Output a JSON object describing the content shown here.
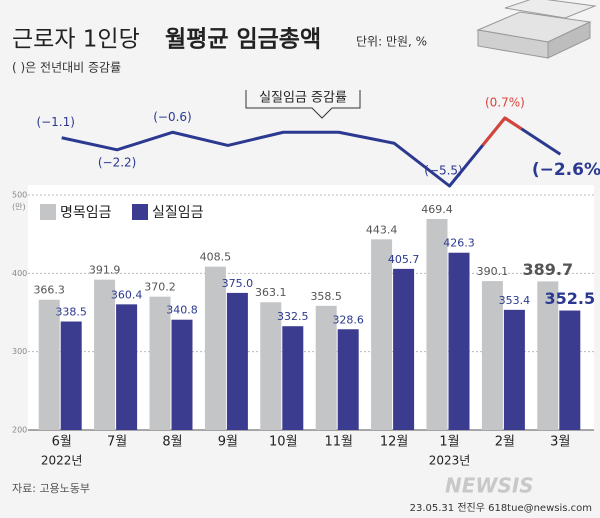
{
  "header": {
    "title_regular": "근로자 1인당",
    "title_bold": "월평균 임금총액",
    "unit": "단위: 만원, %",
    "note": "( )은 전년대비 증감률"
  },
  "chart_data": [
    {
      "type": "line",
      "label": "실질임금 증감률",
      "color": "#2b3990",
      "highlight_color": "#d9443a",
      "values": [
        -1.1,
        -2.2,
        -0.6,
        -1.8,
        -0.6,
        -0.6,
        -1.6,
        -5.5,
        0.7,
        -2.6
      ],
      "value_labels": [
        "(−1.1)",
        "(−2.2)",
        "(−0.6)",
        null,
        null,
        null,
        null,
        "(−5.5)",
        "(0.7%)",
        "(−2.6%)"
      ]
    },
    {
      "type": "bar",
      "categories": [
        "6월",
        "7월",
        "8월",
        "9월",
        "10월",
        "11월",
        "12월",
        "1월",
        "2월",
        "3월"
      ],
      "year_labels": [
        "2022년",
        null,
        null,
        null,
        null,
        null,
        null,
        "2023년",
        null,
        null
      ],
      "ylim": [
        200,
        500
      ],
      "yticks": [
        200,
        300,
        400,
        500
      ],
      "y_unit": "(만)",
      "grid": true,
      "legend": "top-left",
      "series": [
        {
          "name": "명목임금",
          "color": "#c4c5c7",
          "values": [
            366.3,
            391.9,
            370.2,
            408.5,
            363.1,
            358.5,
            443.4,
            469.4,
            390.1,
            389.7
          ],
          "value_labels": [
            "366.3",
            "391.9",
            "370.2",
            "408.5",
            "363.1",
            "358.5",
            "443.4",
            "469.4",
            "390.1",
            "389.7"
          ]
        },
        {
          "name": "실질임금",
          "color": "#3b3b8f",
          "values": [
            338.5,
            360.4,
            340.8,
            375.0,
            332.5,
            328.6,
            405.7,
            426.3,
            353.4,
            352.5
          ],
          "value_labels": [
            "338.5",
            "360.4",
            "340.8",
            "375.0",
            "332.5",
            "328.6",
            "405.7",
            "426.3",
            "353.4",
            "352.5"
          ]
        }
      ]
    }
  ],
  "footer": {
    "source": "자료: 고용노동부",
    "credit": "23.05.31 전진우 618tue@newsis.com",
    "logo": "NEWSIS"
  }
}
